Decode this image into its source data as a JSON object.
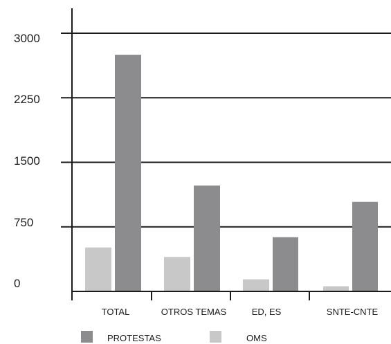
{
  "chart_data": {
    "type": "bar",
    "categories": [
      "TOTAL",
      "OTROS TEMAS",
      "ED, ES",
      "SNTE-CNTE"
    ],
    "series": [
      {
        "name": "OMS",
        "values": [
          510,
          400,
          140,
          60
        ],
        "color": "#c8c8c8"
      },
      {
        "name": "PROTESTAS",
        "values": [
          2750,
          1230,
          630,
          1040
        ],
        "color": "#8c8c8e"
      }
    ],
    "y_ticks": [
      "3000",
      "2250",
      "1500",
      "750",
      "0"
    ],
    "ylim": [
      0,
      3000
    ],
    "grid": true,
    "legend": [
      {
        "label": "PROTESTAS",
        "color": "#8c8c8e"
      },
      {
        "label": "OMS",
        "color": "#c8c8c8"
      }
    ],
    "legend_position": "bottom"
  }
}
